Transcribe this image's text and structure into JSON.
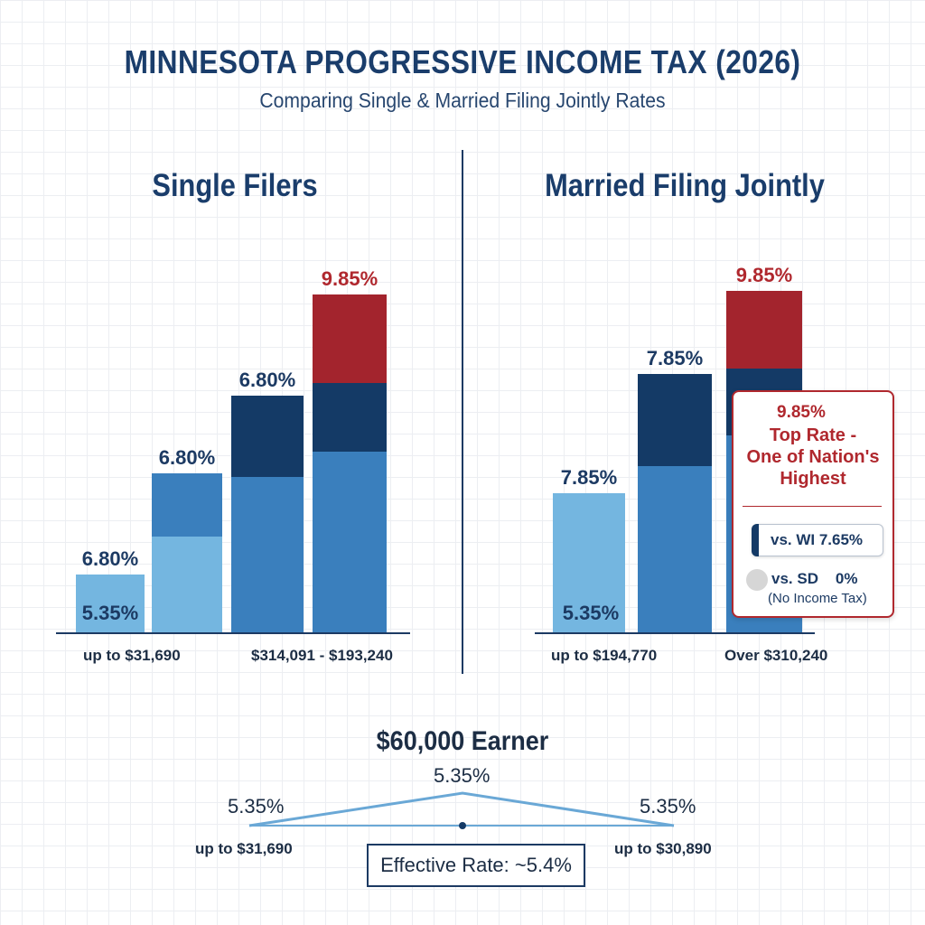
{
  "title": "MINNESOTA PROGRESSIVE INCOME TAX (2026)",
  "subtitle": "Comparing Single & Married Filing Jointly Rates",
  "colors": {
    "light_blue": "#74b6e0",
    "mid_blue": "#3a7fbd",
    "navy": "#143a66",
    "red": "#a3242d",
    "accent_text": "#1a3d6b"
  },
  "chart_data": [
    {
      "type": "bar",
      "title": "Single Filers",
      "value_labels": [
        "6.80%",
        "6.80%",
        "6.80%",
        "9.85%"
      ],
      "inner_label": "5.35%",
      "x_ticks": [
        "up to $31,690",
        "$314,091 - $193,240"
      ]
    },
    {
      "type": "bar",
      "title": "Married Filing Jointly",
      "value_labels": [
        "7.85%",
        "7.85%",
        "9.85%"
      ],
      "inner_label": "5.35%",
      "x_ticks": [
        "up to $194,770",
        "Over $310,240"
      ]
    },
    {
      "type": "line",
      "title": "$60,000 Earner",
      "values": [
        5.35,
        5.35,
        5.35
      ],
      "point_labels": [
        "5.35%",
        "5.35%",
        "5.35%"
      ],
      "x_ticks": [
        "up to $31,690",
        "up to $30,890"
      ],
      "annotation": "Effective Rate: ~5.4%"
    }
  ],
  "callout": {
    "rate": "9.85%",
    "text_line1": "Top Rate -",
    "text_line2": "One of Nation's",
    "text_line3": "Highest",
    "wi": "vs. WI 7.65%",
    "sd": "vs. SD    0%",
    "sd_note": "(No Income Tax)",
    "icon": "warning-icon"
  }
}
